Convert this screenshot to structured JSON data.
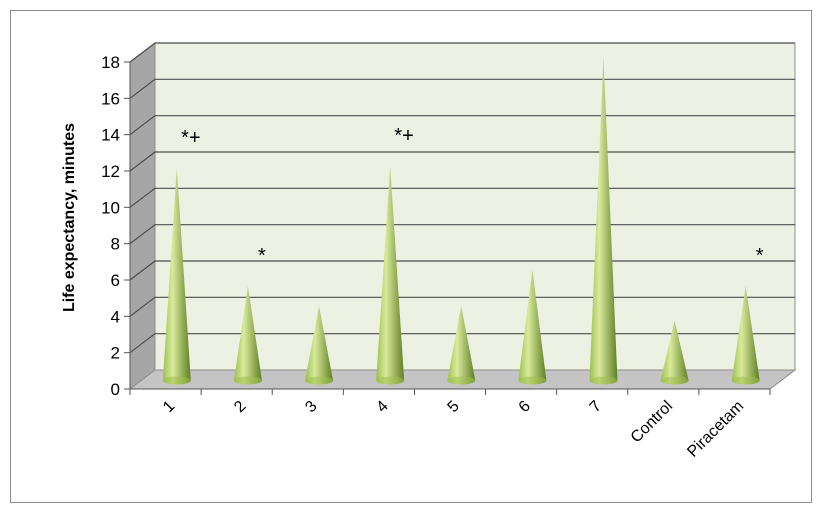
{
  "chart_data": {
    "type": "bar",
    "bar_shape": "cone",
    "categories": [
      "1",
      "2",
      "3",
      "4",
      "5",
      "6",
      "7",
      "Control",
      "Piracetam"
    ],
    "values": [
      11.7,
      5.2,
      4.1,
      11.8,
      4.1,
      6.1,
      17.8,
      3.3,
      5.2
    ],
    "annotations": [
      "*+",
      "*",
      "",
      "*+",
      "",
      "",
      "",
      "",
      "*"
    ],
    "ylabel": "Life expectancy, minutes",
    "xlabel": "",
    "ylim": [
      0,
      18
    ],
    "yticks": [
      "0",
      "2",
      "4",
      "6",
      "8",
      "10",
      "12",
      "14",
      "16",
      "18"
    ],
    "grid": true,
    "colors": {
      "bar_light": "#d9ea9c",
      "bar_mid": "#9dbf4e",
      "bar_dark": "#5e7e22",
      "wall": "#edf1e4",
      "side_wall": "#a6a6a6",
      "floor": "#c4c4c4",
      "gridline": "#4d4d4d"
    }
  }
}
